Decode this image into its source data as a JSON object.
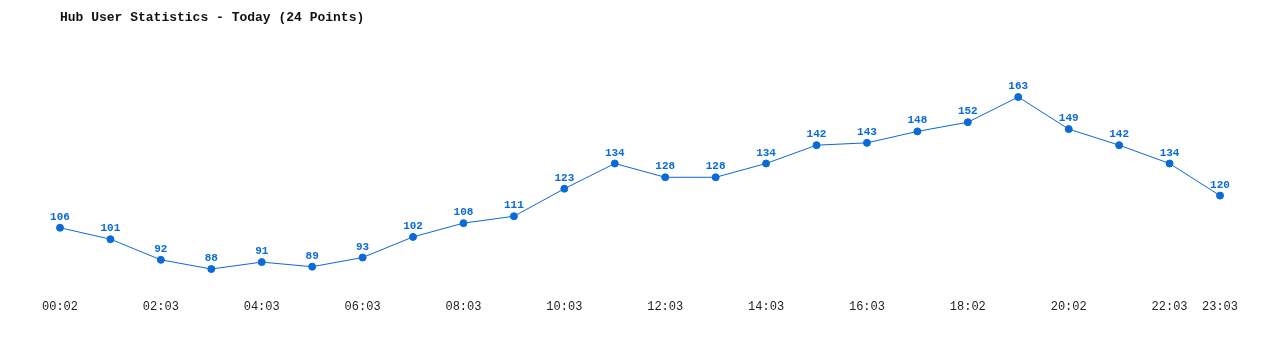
{
  "chart_data": {
    "type": "line",
    "title": "Hub User Statistics - Today (24 Points)",
    "categories": [
      "00:02",
      null,
      "02:03",
      null,
      "04:03",
      null,
      "06:03",
      null,
      "08:03",
      null,
      "10:03",
      null,
      "12:03",
      null,
      "14:03",
      null,
      "16:03",
      null,
      "18:02",
      null,
      "20:02",
      null,
      "22:03",
      "23:03"
    ],
    "series": [
      {
        "color": "#0a6ad6",
        "values": [
          106,
          101,
          92,
          88,
          91,
          89,
          93,
          102,
          108,
          111,
          123,
          134,
          128,
          128,
          134,
          142,
          143,
          148,
          152,
          163,
          149,
          142,
          134,
          120
        ]
      }
    ],
    "data_labels": true,
    "marker": "circle",
    "grid": false,
    "legend": false
  }
}
